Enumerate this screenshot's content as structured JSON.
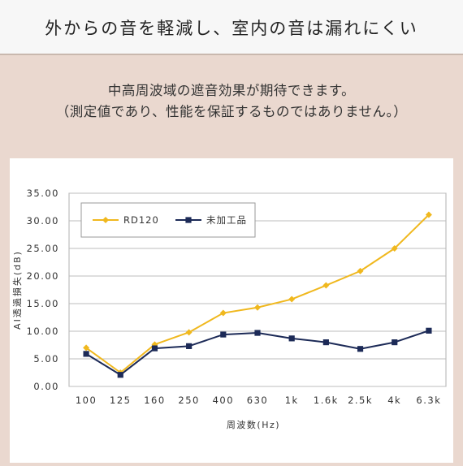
{
  "header": {
    "title": "外からの音を軽減し、室内の音は漏れにくい",
    "desc_line1": "中高周波域の遮音効果が期待できます。",
    "desc_line2": "（測定値であり、性能を保証するものではありません。）"
  },
  "chart_data": {
    "type": "line",
    "categories": [
      "100",
      "125",
      "160",
      "250",
      "400",
      "630",
      "1k",
      "1.6k",
      "2.5k",
      "4k",
      "6.3k"
    ],
    "series": [
      {
        "name": "RD120",
        "color": "#f0b81e",
        "marker": "diamond",
        "values": [
          7.0,
          2.5,
          7.6,
          9.8,
          13.3,
          14.3,
          15.8,
          18.3,
          20.9,
          25.0,
          31.1
        ]
      },
      {
        "name": "未加工品",
        "color": "#1c2a57",
        "marker": "square",
        "values": [
          5.9,
          2.1,
          6.9,
          7.3,
          9.4,
          9.7,
          8.7,
          8.0,
          6.8,
          8.0,
          10.1
        ]
      }
    ],
    "yticks": [
      "0.00",
      "5.00",
      "10.00",
      "15.00",
      "20.00",
      "25.00",
      "30.00",
      "35.00"
    ],
    "ylim": [
      0,
      35
    ],
    "xlabel": "周波数(Hz)",
    "ylabel": "AⅠ透過損失(dB)",
    "grid": true,
    "legend": "top-left"
  }
}
